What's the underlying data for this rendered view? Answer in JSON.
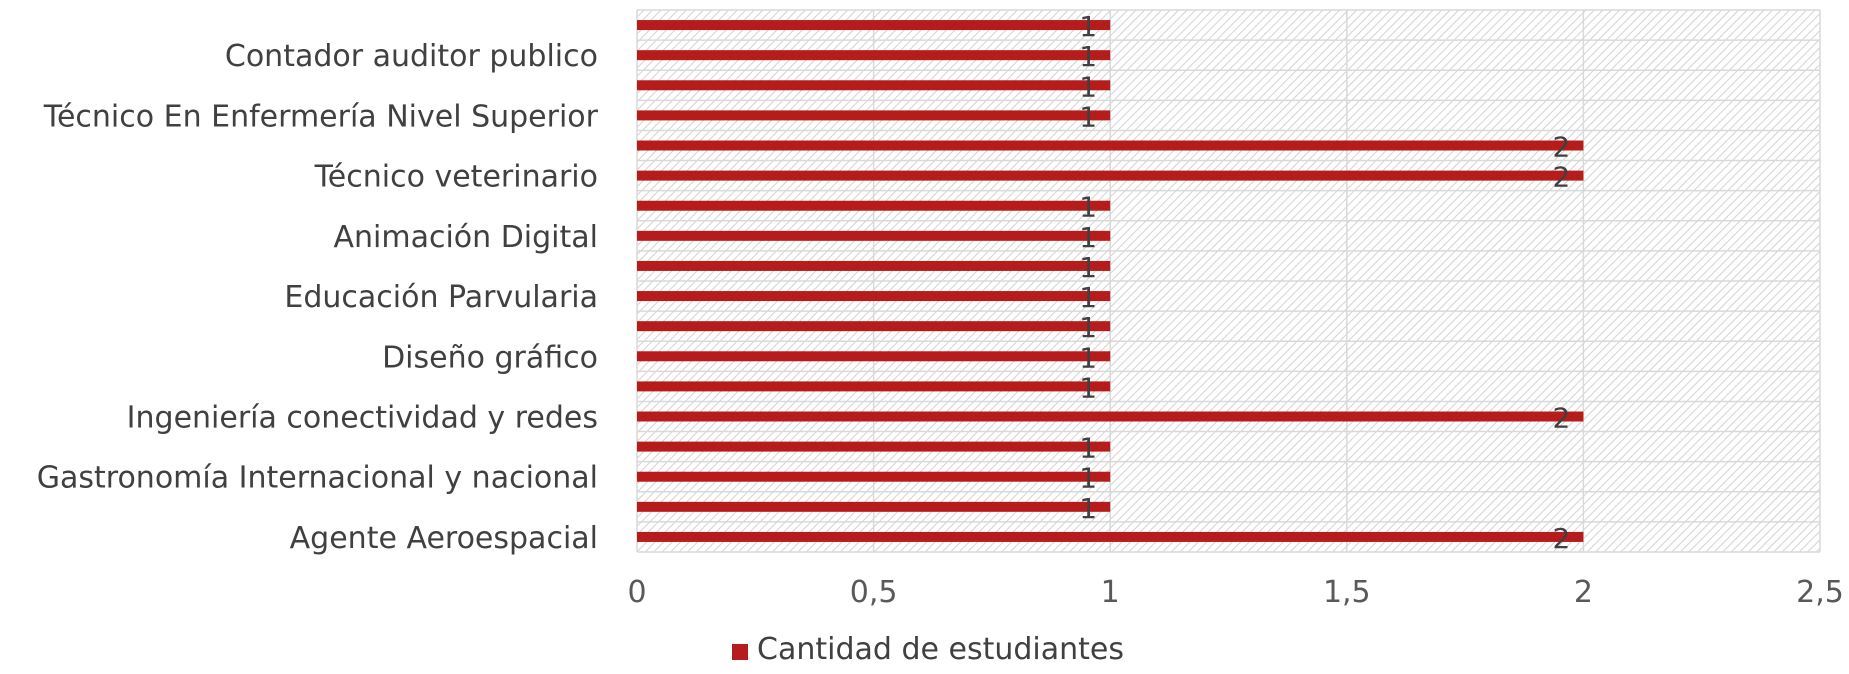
{
  "chart_data": {
    "type": "bar",
    "orientation": "horizontal",
    "categories": [
      "",
      "Contador auditor publico",
      "",
      "Técnico En Enfermería Nivel Superior",
      "",
      "Técnico veterinario",
      "",
      "Animación Digital",
      "",
      "Educación Parvularia",
      "",
      "Diseño gráfico",
      "",
      "Ingeniería conectividad y redes",
      "",
      "Gastronomía Internacional y nacional",
      "",
      "Agente Aeroespacial"
    ],
    "series": [
      {
        "name": "Cantidad de estudiantes",
        "color": "#b71c1c",
        "values": [
          1,
          1,
          1,
          1,
          2,
          2,
          1,
          1,
          1,
          1,
          1,
          1,
          1,
          2,
          1,
          1,
          1,
          2
        ]
      }
    ],
    "xlim": [
      0,
      2.5
    ],
    "x_ticks": [
      "0",
      "0,5",
      "1",
      "1,5",
      "2",
      "2,5"
    ],
    "x_tick_values": [
      0,
      0.5,
      1,
      1.5,
      2,
      2.5
    ],
    "data_labels": [
      "1",
      "1",
      "1",
      "1",
      "2",
      "2",
      "1",
      "1",
      "1",
      "1",
      "1",
      "1",
      "1",
      "2",
      "1",
      "1",
      "1",
      "2"
    ],
    "legend": {
      "position": "bottom",
      "label": "Cantidad de estudiantes",
      "color": "#b71c1c"
    },
    "plot_background": "hatched light gray",
    "grid": true,
    "title": "",
    "xlabel": "",
    "ylabel": ""
  }
}
